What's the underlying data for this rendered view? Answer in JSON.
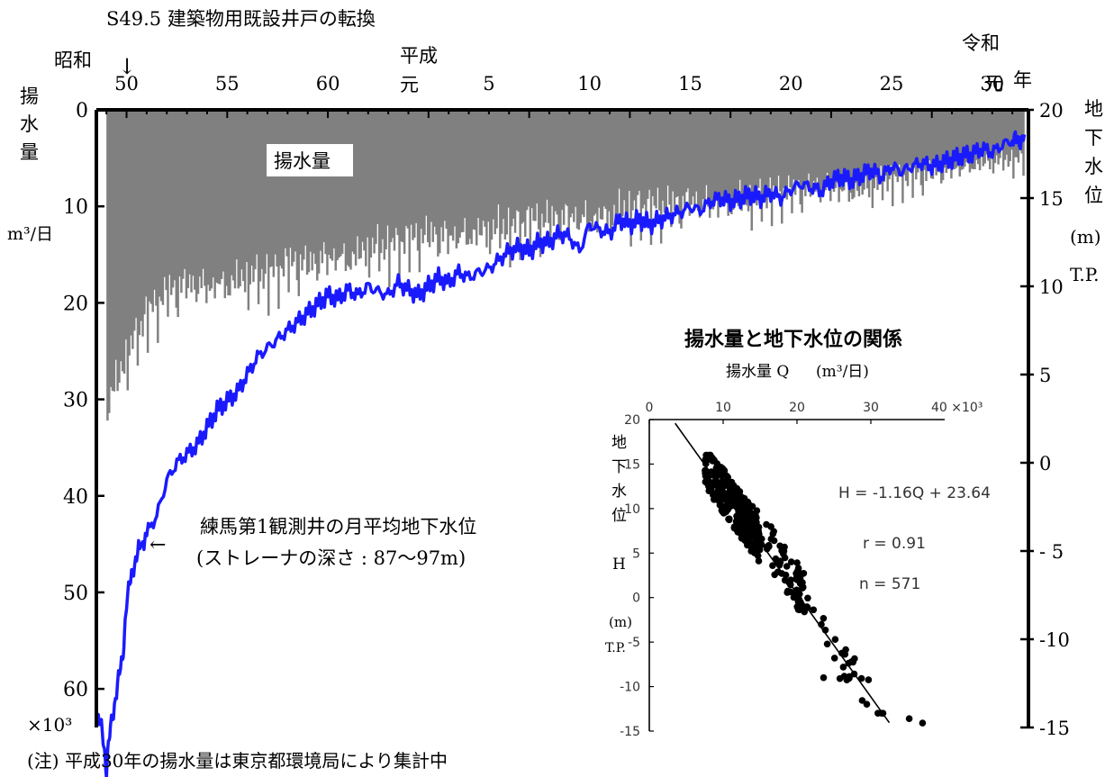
{
  "main_chart": {
    "top_annotation": "S49.5 建築物用既設井戸の転換",
    "top_arrow": "↓",
    "era_showa": "昭和",
    "era_heisei_line1": "平成",
    "era_heisei_line2": "元",
    "era_reiwa_line1": "令和",
    "year_unit": "年",
    "reiwa_gan": "元",
    "year_ticks": [
      {
        "label": "50",
        "year": 1975
      },
      {
        "label": "55",
        "year": 1980
      },
      {
        "label": "60",
        "year": 1985
      },
      {
        "label": "5",
        "year": 1993
      },
      {
        "label": "10",
        "year": 1998
      },
      {
        "label": "15",
        "year": 2003
      },
      {
        "label": "20",
        "year": 2008
      },
      {
        "label": "25",
        "year": 2013
      },
      {
        "label": "30",
        "year": 2018
      }
    ],
    "left_axis_title": [
      "揚",
      "水",
      "量"
    ],
    "left_axis_unit": "m³/日",
    "left_axis_multiplier": "×10³",
    "left_ticks": [
      "0",
      "10",
      "20",
      "30",
      "40",
      "50",
      "60"
    ],
    "left_range": [
      0,
      64
    ],
    "right_axis_title": [
      "地",
      "下",
      "水",
      "位"
    ],
    "right_axis_unit": "(m)",
    "right_axis_datum": "T.P.",
    "right_ticks": [
      "20",
      "15",
      "10",
      "5",
      "0",
      "- 5",
      "-10",
      "-15"
    ],
    "right_range": [
      -15,
      20
    ],
    "pumping_label": "揚水量",
    "level_label_line1": "練馬第1観測井の月平均地下水位",
    "level_label_line2": "(ストレーナの深さ : 87〜97m)",
    "level_arrow": "←",
    "note": "(注) 平成30年の揚水量は東京都環境局により集計中"
  },
  "chart_data": {
    "type": "bar+line",
    "x_range": [
      1973.5,
      2019.8
    ],
    "series": [
      {
        "name": "揚水量",
        "unit": "×10³ m³/日",
        "color": "#808080",
        "x": [
          1974,
          1975,
          1976,
          1977,
          1978,
          1979,
          1980,
          1981,
          1982,
          1983,
          1984,
          1985,
          1986,
          1987,
          1988,
          1989,
          1990,
          1991,
          1992,
          1993,
          1994,
          1995,
          1996,
          1997,
          1998,
          1999,
          2000,
          2001,
          2002,
          2003,
          2004,
          2005,
          2006,
          2007,
          2008,
          2009,
          2010,
          2011,
          2012,
          2013,
          2014,
          2015,
          2016,
          2017,
          2018,
          2019
        ],
        "values": [
          30,
          25,
          21,
          19,
          18,
          18,
          17.5,
          17,
          17,
          16,
          16,
          15,
          15,
          14,
          14,
          13.5,
          13,
          13,
          12.5,
          12,
          12,
          11.5,
          11.5,
          11,
          11,
          10.5,
          10,
          10,
          10,
          9.5,
          9.5,
          9,
          9,
          8.5,
          8.5,
          8,
          8,
          8,
          7.5,
          7,
          7,
          6.5,
          6,
          5.5,
          5,
          5
        ]
      },
      {
        "name": "練馬第1観測井の月平均地下水位",
        "unit": "m T.P.",
        "color": "#1a1aff",
        "x": [
          1973.5,
          1973.8,
          1974.0,
          1974.2,
          1974.5,
          1974.8,
          1975.0,
          1975.3,
          1975.6,
          1976.0,
          1976.5,
          1977.0,
          1977.5,
          1978.0,
          1978.5,
          1979.0,
          1979.5,
          1980.0,
          1980.5,
          1981.0,
          1981.5,
          1982.0,
          1982.5,
          1983.0,
          1983.5,
          1984.0,
          1984.5,
          1985.0,
          1985.5,
          1986.0,
          1986.5,
          1987.0,
          1987.5,
          1988.0,
          1988.5,
          1989.0,
          1989.5,
          1990.0,
          1990.5,
          1991.0,
          1991.5,
          1992.0,
          1992.5,
          1993.0,
          1993.5,
          1994.0,
          1994.5,
          1995.0,
          1995.5,
          1996.0,
          1996.5,
          1997.0,
          1997.5,
          1998.0,
          1998.5,
          1999.0,
          1999.5,
          2000.0,
          2000.5,
          2001.0,
          2001.5,
          2002.0,
          2002.5,
          2003.0,
          2003.5,
          2004.0,
          2004.5,
          2005.0,
          2005.5,
          2006.0,
          2006.5,
          2007.0,
          2007.5,
          2008.0,
          2008.5,
          2009.0,
          2009.5,
          2010.0,
          2010.5,
          2011.0,
          2011.5,
          2012.0,
          2012.5,
          2013.0,
          2013.5,
          2014.0,
          2014.5,
          2015.0,
          2015.5,
          2016.0,
          2016.5,
          2017.0,
          2017.5,
          2018.0,
          2018.5,
          2019.0,
          2019.3,
          2019.6
        ],
        "values": [
          -14.5,
          -15,
          -17.5,
          -15,
          -13,
          -11,
          -8,
          -6,
          -5,
          -4,
          -3,
          -1,
          0,
          0.5,
          1,
          2,
          3,
          3.5,
          4,
          5,
          6,
          6.5,
          7,
          7.5,
          8,
          8.5,
          9,
          9.5,
          9.3,
          9.8,
          9.5,
          10,
          9.7,
          9.5,
          10.2,
          9.8,
          9.5,
          10,
          10.5,
          10.2,
          10.8,
          10.5,
          10.8,
          11,
          11.5,
          12,
          12.2,
          12,
          12.5,
          12.5,
          13,
          12.8,
          12,
          13.5,
          13.2,
          13,
          13.8,
          13.5,
          13.8,
          13.5,
          13.8,
          14,
          14.2,
          14.5,
          14.3,
          14.8,
          15,
          14.8,
          15,
          15.2,
          15,
          15.3,
          15,
          15.5,
          15.8,
          15.6,
          15.4,
          16,
          16.2,
          16,
          16.3,
          16.6,
          16.2,
          16.8,
          16.5,
          16.8,
          17,
          16.8,
          17,
          17.2,
          17.4,
          17.5,
          17.8,
          17.6,
          18,
          18.3,
          18.2,
          18.6
        ]
      }
    ]
  },
  "scatter_chart": {
    "title": "揚水量と地下水位の関係",
    "xlabel_main": "揚水量 Q",
    "xlabel_unit": "(m³/日)",
    "x_ticks": [
      "0",
      "10",
      "20",
      "30"
    ],
    "x_end_label": "40 ×10³",
    "x_range": [
      0,
      40
    ],
    "y_ticks": [
      "20",
      "15",
      "10",
      "5",
      "0",
      "-5",
      "-10",
      "-15"
    ],
    "y_range": [
      -15,
      20
    ],
    "ylabel_chars": [
      "地",
      "下",
      "水",
      "位"
    ],
    "ylabel_symbol": "H",
    "ylabel_unit": "(m)",
    "ylabel_datum": "T.P.",
    "equation": "H = -1.16Q + 23.64",
    "r_text": "r = 0.91",
    "n_text": "n = 571",
    "fit": {
      "slope": -1.16,
      "intercept": 23.64
    },
    "point_color": "#000000"
  }
}
